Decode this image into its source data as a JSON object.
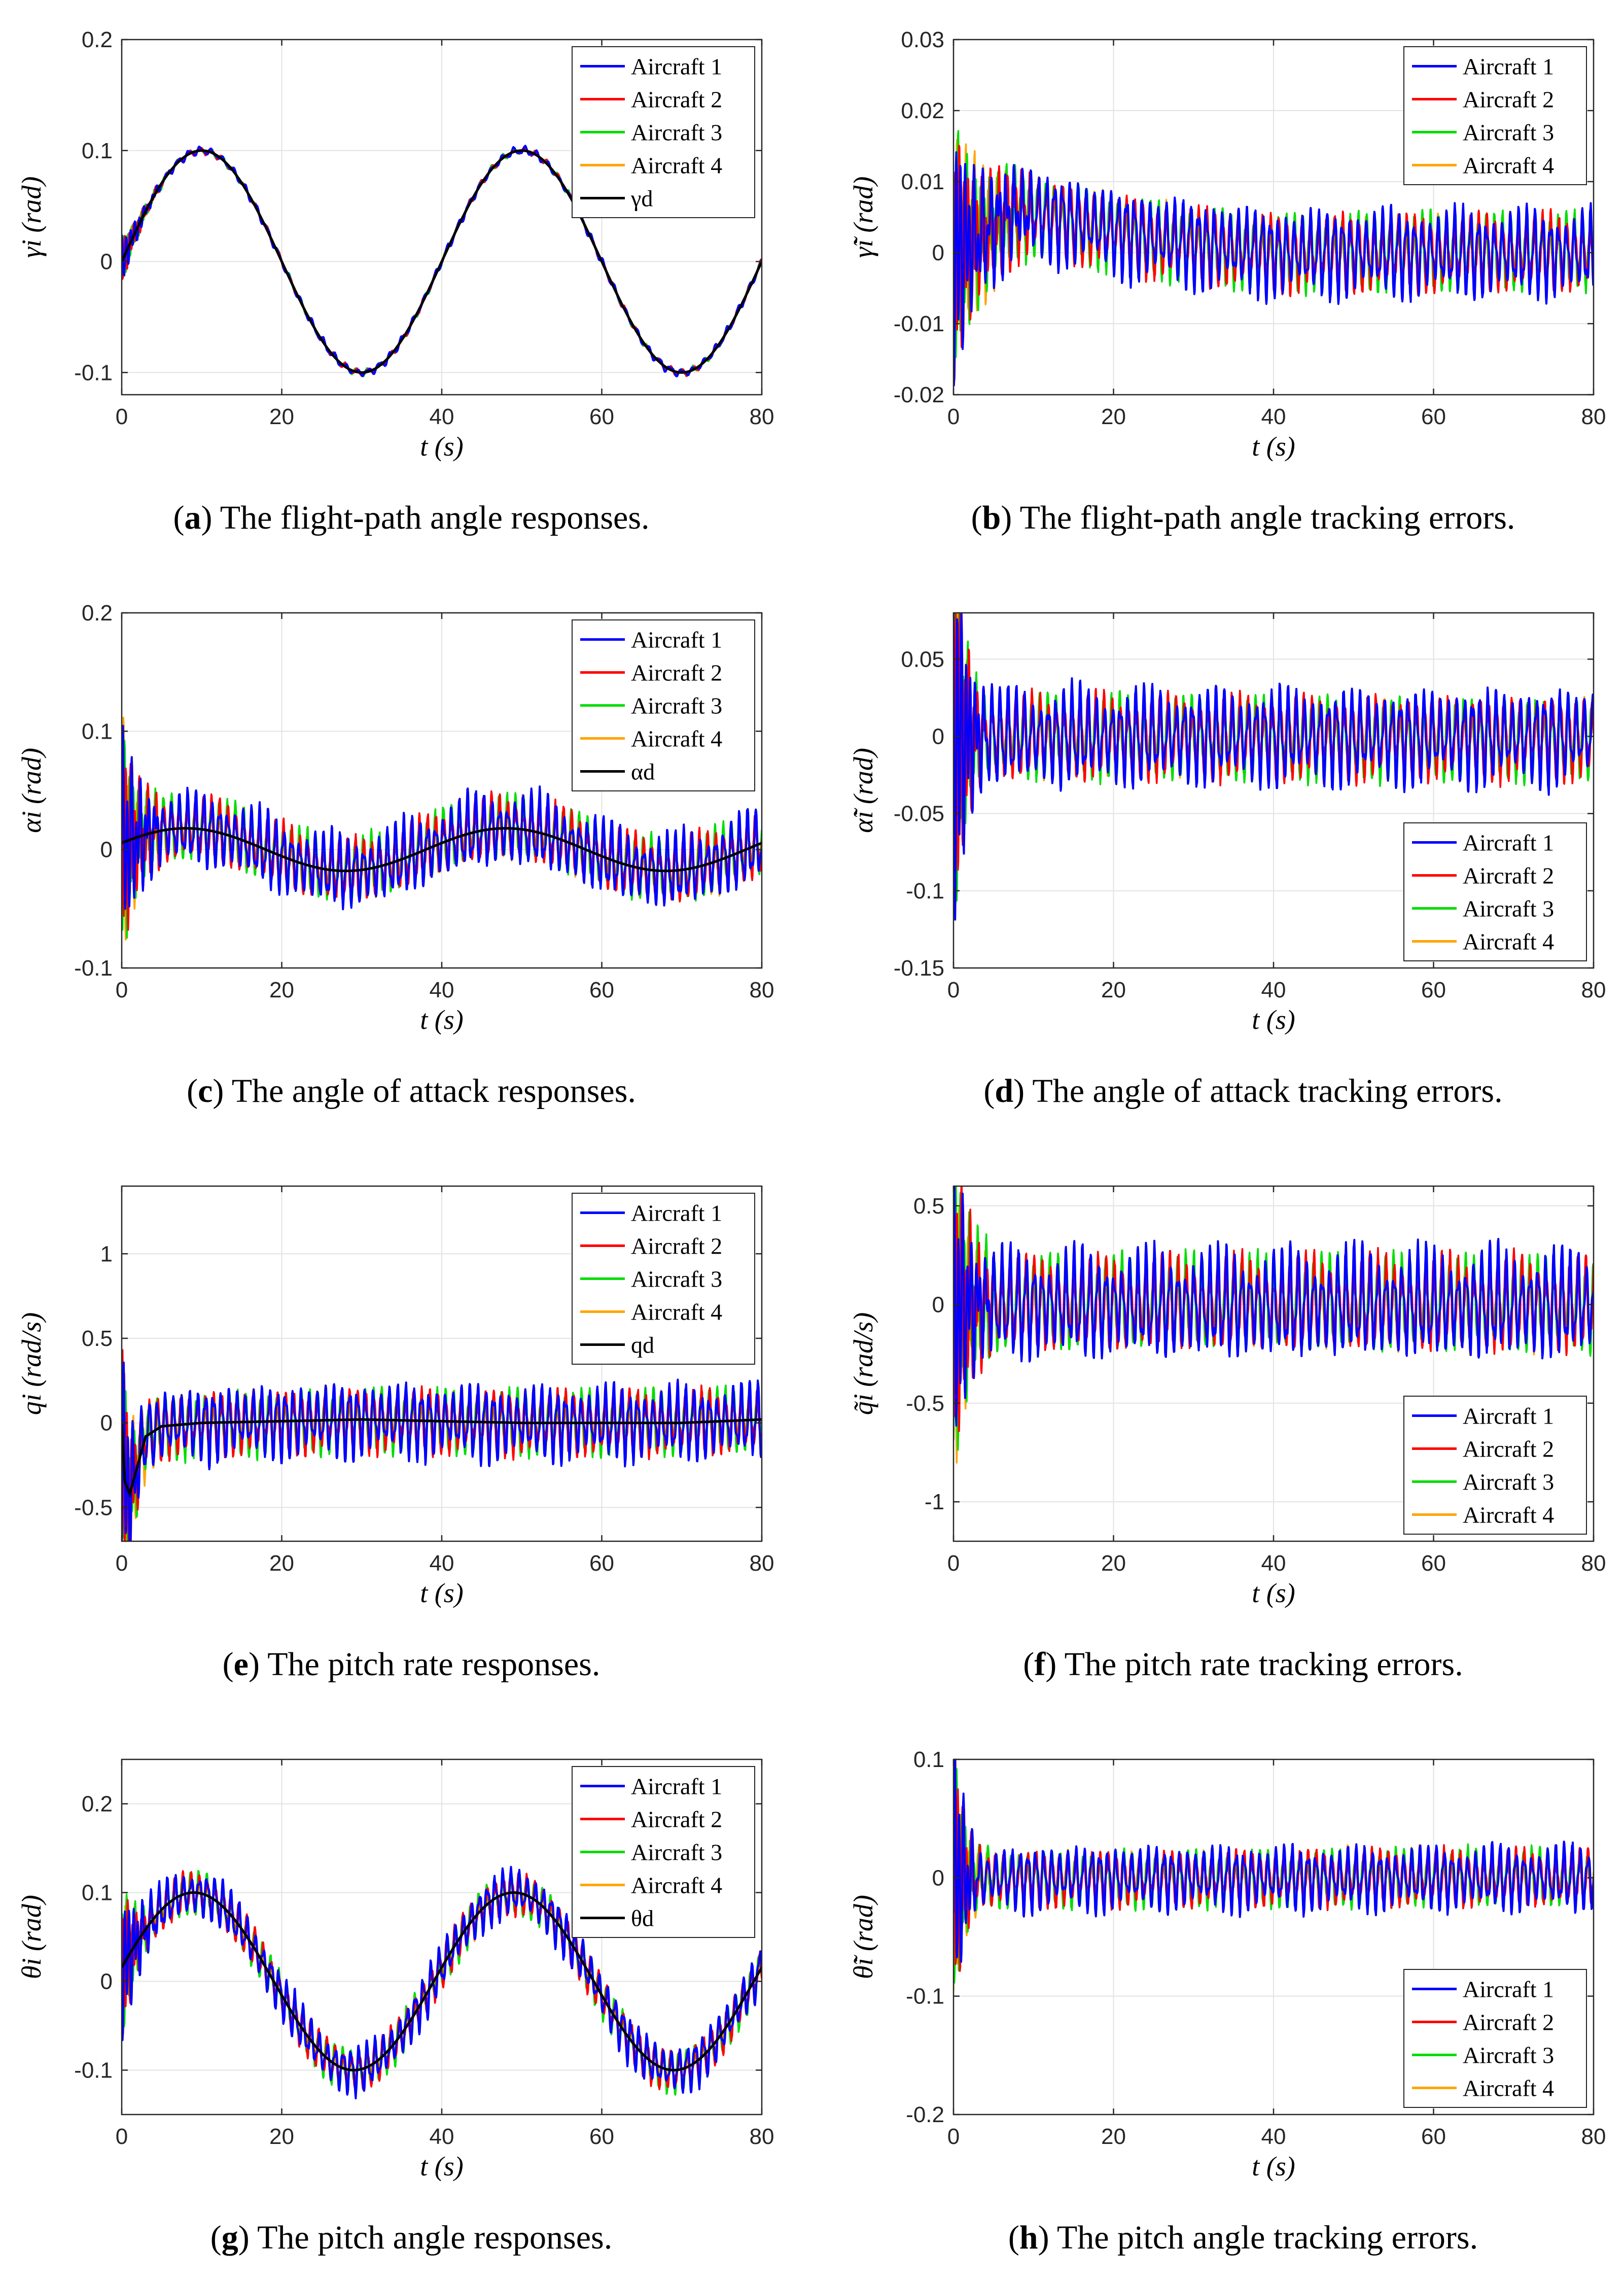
{
  "figure": {
    "panels": [
      {
        "tag": "a",
        "caption": "The flight-path angle responses."
      },
      {
        "tag": "b",
        "caption": "The flight-path angle tracking errors."
      },
      {
        "tag": "c",
        "caption": "The angle of attack responses."
      },
      {
        "tag": "d",
        "caption": "The angle of attack tracking errors."
      },
      {
        "tag": "e",
        "caption": "The pitch rate responses."
      },
      {
        "tag": "f",
        "caption": "The pitch rate tracking errors."
      },
      {
        "tag": "g",
        "caption": "The pitch angle responses."
      },
      {
        "tag": "h",
        "caption": "The pitch angle tracking errors."
      }
    ]
  },
  "colors": {
    "aircraft_1": "#0000ff",
    "aircraft_2": "#ff0000",
    "aircraft_3": "#00dd00",
    "aircraft_4": "#ffa500",
    "desired": "#000000"
  },
  "chart_data": [
    {
      "type": "line",
      "id": "a",
      "title": "",
      "xlabel": "t (s)",
      "ylabel": "γi (rad)",
      "xlim": [
        0,
        80
      ],
      "ylim": [
        -0.12,
        0.2
      ],
      "xticks": [
        0,
        20,
        40,
        60,
        80
      ],
      "xtick_labels": [
        "0",
        "20",
        "40",
        "60",
        "80"
      ],
      "yticks": [
        -0.1,
        0,
        0.1,
        0.2
      ],
      "ytick_labels": [
        "-0.1",
        "0",
        "0.1",
        "0.2"
      ],
      "grid": true,
      "legend_position": "top-right",
      "desired": {
        "name": "γd",
        "shape": "sine",
        "amplitude": 0.1,
        "period_s": 40,
        "offset_s": 0
      },
      "noise_amplitude": 0.005,
      "noise_period_s": 1.4,
      "initial_transient_amplitude": 0.02,
      "transient_duration_s": 6,
      "series": [
        {
          "name": "Aircraft 1",
          "color_key": "aircraft_1"
        },
        {
          "name": "Aircraft 2",
          "color_key": "aircraft_2"
        },
        {
          "name": "Aircraft 3",
          "color_key": "aircraft_3"
        },
        {
          "name": "Aircraft 4",
          "color_key": "aircraft_4"
        }
      ]
    },
    {
      "type": "line",
      "id": "b",
      "title": "",
      "xlabel": "t (s)",
      "ylabel": "γ̃i (rad)",
      "xlim": [
        0,
        80
      ],
      "ylim": [
        -0.02,
        0.03
      ],
      "xticks": [
        0,
        20,
        40,
        60,
        80
      ],
      "xtick_labels": [
        "0",
        "20",
        "40",
        "60",
        "80"
      ],
      "yticks": [
        -0.02,
        -0.01,
        0,
        0.01,
        0.02,
        0.03
      ],
      "ytick_labels": [
        "-0.02",
        "-0.01",
        "0",
        "0.01",
        "0.02",
        "0.03"
      ],
      "grid": true,
      "legend_position": "top-right",
      "desired": null,
      "baseline": {
        "points": [
          [
            0,
            0.0
          ],
          [
            8,
            0.006
          ],
          [
            12,
            0.005
          ],
          [
            25,
            0.002
          ],
          [
            40,
            0.0
          ],
          [
            80,
            0.0
          ]
        ]
      },
      "noise_amplitude": 0.008,
      "noise_period_s": 1.0,
      "initial_transient_amplitude": 0.017,
      "transient_duration_s": 10,
      "series": [
        {
          "name": "Aircraft 1",
          "color_key": "aircraft_1"
        },
        {
          "name": "Aircraft 2",
          "color_key": "aircraft_2"
        },
        {
          "name": "Aircraft 3",
          "color_key": "aircraft_3"
        },
        {
          "name": "Aircraft 4",
          "color_key": "aircraft_4"
        }
      ]
    },
    {
      "type": "line",
      "id": "c",
      "title": "",
      "xlabel": "t (s)",
      "ylabel": "αi (rad)",
      "xlim": [
        0,
        80
      ],
      "ylim": [
        -0.1,
        0.2
      ],
      "xticks": [
        0,
        20,
        40,
        60,
        80
      ],
      "xtick_labels": [
        "0",
        "20",
        "40",
        "60",
        "80"
      ],
      "yticks": [
        -0.1,
        0,
        0.1,
        0.2
      ],
      "ytick_labels": [
        "-0.1",
        "0",
        "0.1",
        "0.2"
      ],
      "grid": true,
      "legend_position": "top-right",
      "desired": {
        "name": "αd",
        "shape": "sine",
        "amplitude": 0.018,
        "period_s": 40,
        "offset_s": -2
      },
      "noise_amplitude": 0.04,
      "noise_period_s": 1.0,
      "initial_transient_amplitude": 0.09,
      "transient_duration_s": 5,
      "series": [
        {
          "name": "Aircraft 1",
          "color_key": "aircraft_1"
        },
        {
          "name": "Aircraft 2",
          "color_key": "aircraft_2"
        },
        {
          "name": "Aircraft 3",
          "color_key": "aircraft_3"
        },
        {
          "name": "Aircraft 4",
          "color_key": "aircraft_4"
        }
      ]
    },
    {
      "type": "line",
      "id": "d",
      "title": "",
      "xlabel": "t (s)",
      "ylabel": "α̃i (rad)",
      "xlim": [
        0,
        80
      ],
      "ylim": [
        -0.15,
        0.08
      ],
      "xticks": [
        0,
        20,
        40,
        60,
        80
      ],
      "xtick_labels": [
        "0",
        "20",
        "40",
        "60",
        "80"
      ],
      "yticks": [
        -0.15,
        -0.1,
        -0.05,
        0,
        0.05
      ],
      "ytick_labels": [
        "-0.15",
        "-0.1",
        "-0.05",
        "0",
        "0.05"
      ],
      "grid": true,
      "legend_position": "bottom-right",
      "desired": null,
      "noise_amplitude": 0.04,
      "noise_period_s": 1.0,
      "initial_transient_amplitude": 0.11,
      "transient_duration_s": 5,
      "series": [
        {
          "name": "Aircraft 1",
          "color_key": "aircraft_1"
        },
        {
          "name": "Aircraft 2",
          "color_key": "aircraft_2"
        },
        {
          "name": "Aircraft 3",
          "color_key": "aircraft_3"
        },
        {
          "name": "Aircraft 4",
          "color_key": "aircraft_4"
        }
      ]
    },
    {
      "type": "line",
      "id": "e",
      "title": "",
      "xlabel": "t (s)",
      "ylabel": "qi (rad/s)",
      "xlim": [
        0,
        80
      ],
      "ylim": [
        -0.7,
        1.4
      ],
      "xticks": [
        0,
        20,
        40,
        60,
        80
      ],
      "xtick_labels": [
        "0",
        "20",
        "40",
        "60",
        "80"
      ],
      "yticks": [
        -0.5,
        0,
        0.5,
        1
      ],
      "ytick_labels": [
        "-0.5",
        "0",
        "0.5",
        "1"
      ],
      "grid": true,
      "legend_position": "top-right",
      "desired": {
        "name": "qd",
        "shape": "decay",
        "points": [
          [
            0,
            0.0
          ],
          [
            0.4,
            -0.35
          ],
          [
            1.0,
            -0.42
          ],
          [
            2.0,
            -0.25
          ],
          [
            3.0,
            -0.08
          ],
          [
            5.0,
            -0.02
          ],
          [
            10,
            0.0
          ],
          [
            30,
            0.02
          ],
          [
            50,
            0.0
          ],
          [
            70,
            0.0
          ],
          [
            80,
            0.02
          ]
        ]
      },
      "noise_amplitude": 0.28,
      "noise_period_s": 1.0,
      "initial_transient_amplitude": 0.65,
      "transient_duration_s": 5,
      "series": [
        {
          "name": "Aircraft 1",
          "color_key": "aircraft_1"
        },
        {
          "name": "Aircraft 2",
          "color_key": "aircraft_2"
        },
        {
          "name": "Aircraft 3",
          "color_key": "aircraft_3"
        },
        {
          "name": "Aircraft 4",
          "color_key": "aircraft_4"
        }
      ]
    },
    {
      "type": "line",
      "id": "f",
      "title": "",
      "xlabel": "t (s)",
      "ylabel": "q̃i (rad/s)",
      "xlim": [
        0,
        80
      ],
      "ylim": [
        -1.2,
        0.6
      ],
      "xticks": [
        0,
        20,
        40,
        60,
        80
      ],
      "xtick_labels": [
        "0",
        "20",
        "40",
        "60",
        "80"
      ],
      "yticks": [
        -1,
        -0.5,
        0,
        0.5
      ],
      "ytick_labels": [
        "-1",
        "-0.5",
        "0",
        "0.5"
      ],
      "grid": true,
      "legend_position": "bottom-right",
      "desired": null,
      "noise_amplitude": 0.35,
      "noise_period_s": 1.0,
      "initial_transient_amplitude": 0.8,
      "transient_duration_s": 5,
      "series": [
        {
          "name": "Aircraft 1",
          "color_key": "aircraft_1"
        },
        {
          "name": "Aircraft 2",
          "color_key": "aircraft_2"
        },
        {
          "name": "Aircraft 3",
          "color_key": "aircraft_3"
        },
        {
          "name": "Aircraft 4",
          "color_key": "aircraft_4"
        }
      ]
    },
    {
      "type": "line",
      "id": "g",
      "title": "",
      "xlabel": "t (s)",
      "ylabel": "θi (rad)",
      "xlim": [
        0,
        80
      ],
      "ylim": [
        -0.15,
        0.25
      ],
      "xticks": [
        0,
        20,
        40,
        60,
        80
      ],
      "xtick_labels": [
        "0",
        "20",
        "40",
        "60",
        "80"
      ],
      "yticks": [
        -0.1,
        0,
        0.1,
        0.2
      ],
      "ytick_labels": [
        "-0.1",
        "0",
        "0.1",
        "0.2"
      ],
      "grid": true,
      "legend_position": "top-right",
      "desired": {
        "name": "θd",
        "shape": "sine",
        "amplitude": 0.1,
        "period_s": 40,
        "offset_s": -1
      },
      "noise_amplitude": 0.035,
      "noise_period_s": 1.0,
      "initial_transient_amplitude": 0.07,
      "transient_duration_s": 5,
      "series": [
        {
          "name": "Aircraft 1",
          "color_key": "aircraft_1"
        },
        {
          "name": "Aircraft 2",
          "color_key": "aircraft_2"
        },
        {
          "name": "Aircraft 3",
          "color_key": "aircraft_3"
        },
        {
          "name": "Aircraft 4",
          "color_key": "aircraft_4"
        }
      ]
    },
    {
      "type": "line",
      "id": "h",
      "title": "",
      "xlabel": "t (s)",
      "ylabel": "θ̃i (rad)",
      "xlim": [
        0,
        80
      ],
      "ylim": [
        -0.2,
        0.1
      ],
      "xticks": [
        0,
        20,
        40,
        60,
        80
      ],
      "xtick_labels": [
        "0",
        "20",
        "40",
        "60",
        "80"
      ],
      "yticks": [
        -0.2,
        -0.1,
        0,
        0.1
      ],
      "ytick_labels": [
        "-0.2",
        "-0.1",
        "0",
        "0.1"
      ],
      "grid": true,
      "legend_position": "bottom-right",
      "desired": null,
      "noise_amplitude": 0.035,
      "noise_period_s": 1.0,
      "initial_transient_amplitude": 0.11,
      "transient_duration_s": 5,
      "series": [
        {
          "name": "Aircraft 1",
          "color_key": "aircraft_1"
        },
        {
          "name": "Aircraft 2",
          "color_key": "aircraft_2"
        },
        {
          "name": "Aircraft 3",
          "color_key": "aircraft_3"
        },
        {
          "name": "Aircraft 4",
          "color_key": "aircraft_4"
        }
      ]
    }
  ]
}
